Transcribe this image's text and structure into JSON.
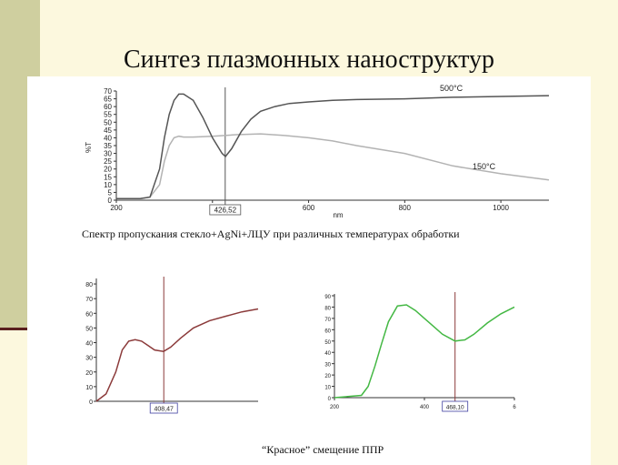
{
  "slide": {
    "title": "Синтез плазмонных наноструктур",
    "caption_top": "Спектр пропускания стекло+AgNi+ЛЦУ при различных температурах обработки",
    "caption_bottom": "“Красное” смещение ППР"
  },
  "colors": {
    "background": "#fcf8de",
    "sidebar": "#cfcf9f",
    "curve_500": "#555555",
    "curve_150": "#b3b3b3",
    "marker_line": "#8b3a3a",
    "curve_red": "#8b3a3a",
    "curve_green": "#44b844"
  },
  "chart_data": [
    {
      "type": "line",
      "title": "",
      "xlabel": "nm",
      "ylabel": "%T",
      "xlim": [
        200,
        1100
      ],
      "ylim": [
        0,
        70
      ],
      "x_ticks": [
        "200",
        "400",
        "600",
        "800",
        "1000"
      ],
      "y_ticks": [
        "0",
        "5",
        "10",
        "15",
        "20",
        "25",
        "30",
        "35",
        "40",
        "45",
        "50",
        "55",
        "60",
        "65",
        "70"
      ],
      "marker": {
        "x": 426.52,
        "label": "426,52"
      },
      "series": [
        {
          "name": "500°C",
          "x": [
            200,
            250,
            270,
            290,
            300,
            310,
            320,
            330,
            340,
            360,
            380,
            400,
            420,
            427,
            440,
            460,
            480,
            500,
            530,
            560,
            600,
            650,
            700,
            800,
            900,
            1000,
            1100
          ],
          "y": [
            1,
            1,
            2,
            20,
            40,
            55,
            64,
            68,
            68,
            64,
            53,
            40,
            30,
            28,
            33,
            44,
            52,
            57,
            60,
            62,
            63,
            64,
            64.5,
            65,
            66,
            66.5,
            67
          ]
        },
        {
          "name": "150°C",
          "x": [
            200,
            250,
            270,
            290,
            300,
            310,
            320,
            330,
            340,
            360,
            400,
            450,
            500,
            550,
            600,
            650,
            700,
            800,
            900,
            1000,
            1100
          ],
          "y": [
            1,
            1,
            2,
            10,
            25,
            35,
            40,
            41,
            40.5,
            40.5,
            41,
            42,
            42.5,
            41.5,
            40,
            38,
            35,
            30,
            22,
            17,
            13
          ]
        }
      ]
    },
    {
      "type": "line",
      "title": "",
      "xlabel": "",
      "ylabel": "",
      "xlim": [
        200,
        700
      ],
      "ylim": [
        0,
        85
      ],
      "y_ticks": [
        "0",
        "10",
        "20",
        "30",
        "40",
        "50",
        "60",
        "70",
        "80"
      ],
      "marker": {
        "x": 408.47,
        "label": "408,47"
      },
      "series": [
        {
          "name": "",
          "x": [
            200,
            230,
            260,
            280,
            300,
            320,
            340,
            360,
            380,
            408,
            430,
            460,
            500,
            550,
            600,
            650,
            700
          ],
          "y": [
            0,
            5,
            20,
            35,
            41,
            42,
            41,
            38,
            35,
            34,
            37,
            43,
            50,
            55,
            58,
            61,
            63
          ]
        }
      ]
    },
    {
      "type": "line",
      "title": "",
      "xlabel": "",
      "ylabel": "",
      "xlim": [
        200,
        600
      ],
      "ylim": [
        0,
        90
      ],
      "x_ticks": [
        "200",
        "400",
        "6"
      ],
      "y_ticks": [
        "0",
        "10",
        "20",
        "30",
        "40",
        "50",
        "60",
        "70",
        "80",
        "90"
      ],
      "marker": {
        "x": 468.1,
        "label": "468,10"
      },
      "series": [
        {
          "name": "",
          "x": [
            200,
            260,
            275,
            290,
            305,
            320,
            340,
            360,
            380,
            400,
            420,
            440,
            468,
            490,
            510,
            540,
            570,
            600
          ],
          "y": [
            0,
            2,
            10,
            28,
            48,
            67,
            81,
            82,
            77,
            70,
            63,
            56,
            50,
            51,
            56,
            66,
            74,
            80
          ]
        }
      ]
    }
  ]
}
